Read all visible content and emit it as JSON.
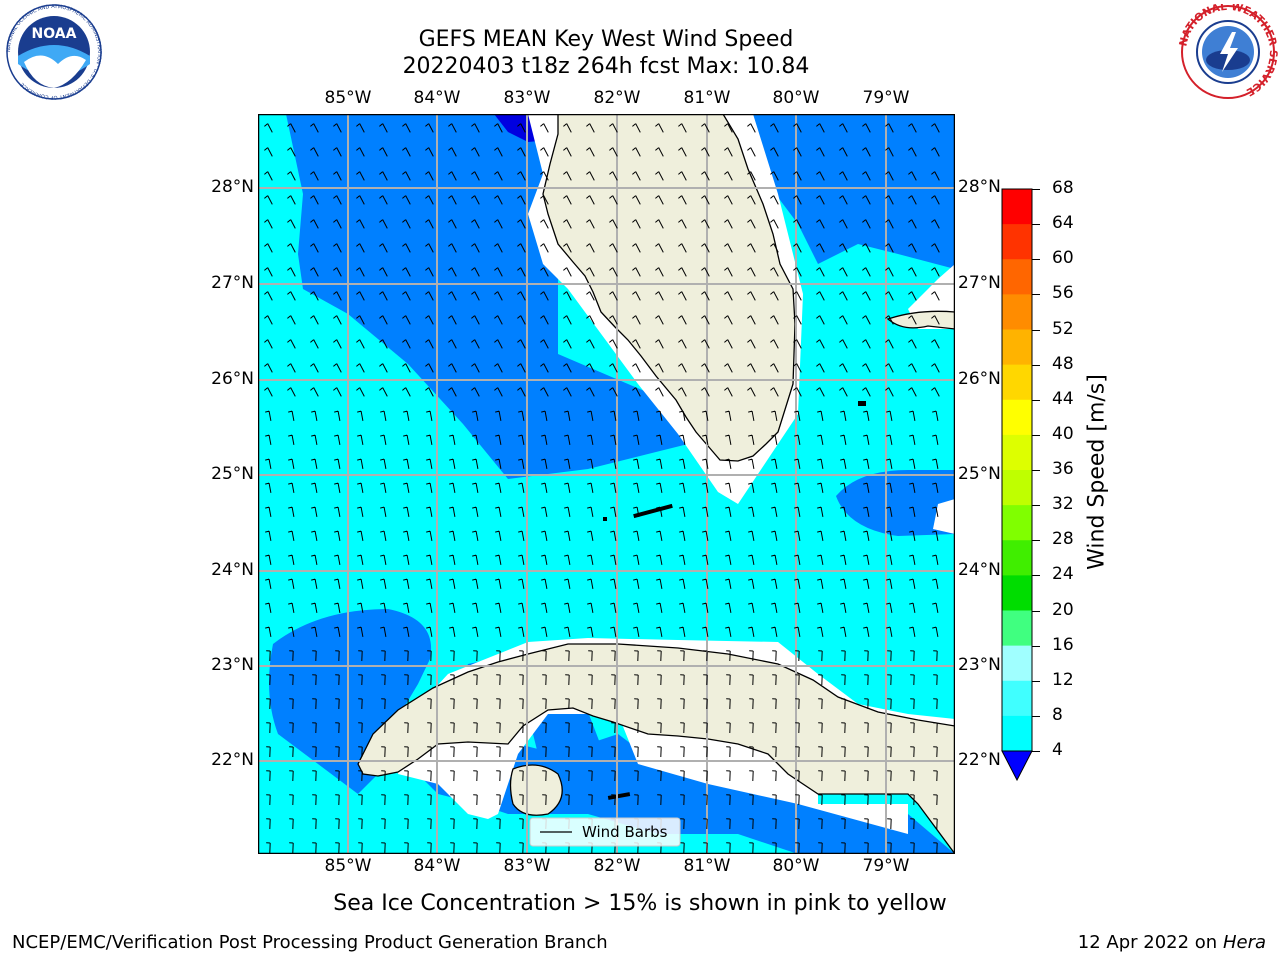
{
  "title": {
    "line1": "GEFS MEAN Key West Wind Speed",
    "line2": "20220403 t18z 264h fcst   Max: 10.84"
  },
  "map": {
    "lon_ticks": [
      "85°W",
      "84°W",
      "83°W",
      "82°W",
      "81°W",
      "80°W",
      "79°W"
    ],
    "lat_ticks": [
      "28°N",
      "27°N",
      "26°N",
      "25°N",
      "24°N",
      "23°N",
      "22°N"
    ],
    "legend_label": "Wind Barbs",
    "ocean_color": "#00ffff",
    "wind_band_color": "#0080ff",
    "land_color": "#efefdc"
  },
  "colorbar": {
    "label": "Wind Speed [m/s]",
    "ticks": [
      "68",
      "64",
      "60",
      "56",
      "52",
      "48",
      "44",
      "40",
      "36",
      "32",
      "28",
      "24",
      "20",
      "16",
      "12",
      "8",
      "4"
    ],
    "colors": [
      "#ff0000",
      "#ff3300",
      "#ff6600",
      "#ff8c00",
      "#ffb300",
      "#ffd700",
      "#ffff00",
      "#ddff00",
      "#bfff00",
      "#80ff00",
      "#40ee00",
      "#00dd00",
      "#40ff80",
      "#a0ffff",
      "#40ffff",
      "#00ffff",
      "#0080ff"
    ],
    "extend_color": "#0000ff"
  },
  "subtitle": "Sea Ice Concentration > 15% is shown in pink to yellow",
  "footer": {
    "left": "NCEP/EMC/Verification Post Processing Product Generation Branch",
    "date": "12 Apr 2022 on",
    "machine": "Hera"
  },
  "logos": {
    "noaa": "NOAA",
    "noaa_ring": "NATIONAL OCEANIC AND ATMOSPHERIC ADMINISTRATION · U.S. DEPARTMENT OF COMMERCE",
    "nws_ring": "NATIONAL WEATHER SERVICE"
  }
}
